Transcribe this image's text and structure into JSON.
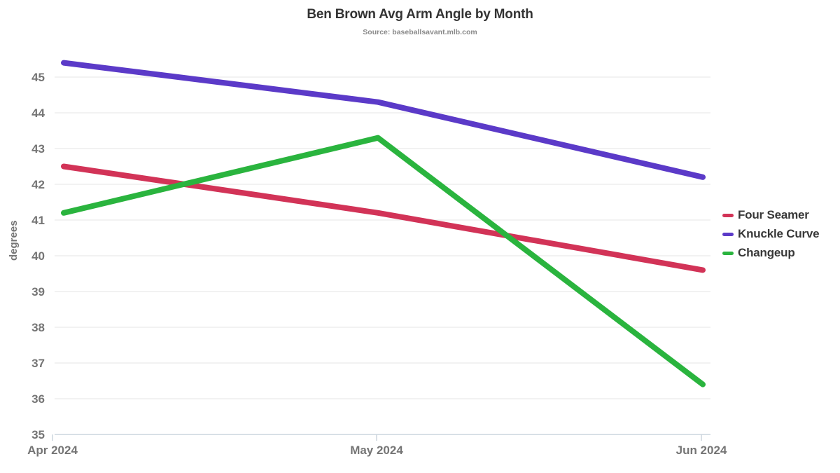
{
  "title": "Ben Brown Avg Arm Angle by Month",
  "subtitle": "Source: baseballsavant.mlb.com",
  "chart_data": {
    "type": "line",
    "x": [
      "Apr 2024",
      "May 2024",
      "Jun 2024"
    ],
    "series": [
      {
        "name": "Four Seamer",
        "color": "#d23357",
        "values": [
          42.5,
          41.2,
          39.6
        ]
      },
      {
        "name": "Knuckle Curve",
        "color": "#5b3ac8",
        "values": [
          45.4,
          44.3,
          42.2
        ]
      },
      {
        "name": "Changeup",
        "color": "#2ab43e",
        "values": [
          41.2,
          43.3,
          36.4
        ]
      }
    ],
    "ylabel": "degrees",
    "ylim": [
      35,
      45.5
    ],
    "yticks": [
      35,
      36,
      37,
      38,
      39,
      40,
      41,
      42,
      43,
      44,
      45
    ],
    "grid": true,
    "legend_position": "right",
    "colors": {
      "grid": "#e9e9e9",
      "axis": "#ccd5de",
      "tick_text": "#757575",
      "title_text": "#333333"
    }
  }
}
